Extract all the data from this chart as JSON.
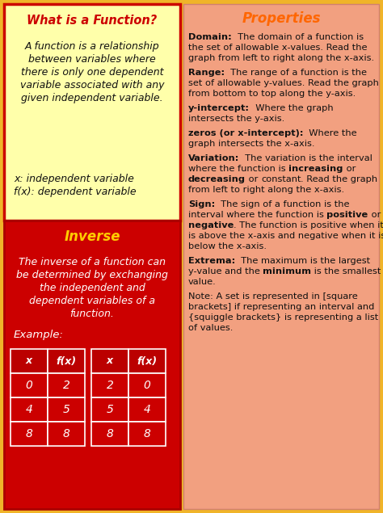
{
  "fig_w": 4.74,
  "fig_h": 6.35,
  "dpi": 100,
  "bg_color": "#f0b429",
  "left_panel_bg": "#ffffaa",
  "left_panel_border": "#cc0000",
  "left_bottom_bg": "#cc0000",
  "right_panel_bg": "#f2a080",
  "orange_title": "#ff6600",
  "dark_red_title": "#cc0000",
  "yellow_title": "#ffcc00",
  "white_text": "#ffffff",
  "black_text": "#111111",
  "what_title": "What is a Function?",
  "what_body_lines": [
    "A function is a relationship",
    "between variables where",
    "there is only one dependent",
    "variable associated with any",
    "given independent variable."
  ],
  "what_footer_lines": [
    "x: independent variable",
    "f(x): dependent variable"
  ],
  "inverse_title": "Inverse",
  "inverse_body_lines": [
    "The inverse of a function can",
    "be determined by exchanging",
    "the independent and",
    "dependent variables of a",
    "function."
  ],
  "inverse_example": "Example:",
  "table_headers": [
    "x",
    "f(x)",
    "x",
    "f(x)"
  ],
  "table_rows": [
    [
      "0",
      "2",
      "2",
      "0"
    ],
    [
      "4",
      "5",
      "5",
      "4"
    ],
    [
      "8",
      "8",
      "8",
      "8"
    ]
  ],
  "props_title": "Properties",
  "prop_entries": [
    {
      "bold": "Domain:",
      "lines": [
        [
          {
            "b": true,
            "t": "Domain:"
          },
          {
            "b": false,
            "t": "  The domain of a function is"
          }
        ],
        [
          {
            "b": false,
            "t": "the set of allowable x-values. Read the"
          }
        ],
        [
          {
            "b": false,
            "t": "graph from left to right along the x-axis."
          }
        ]
      ]
    },
    {
      "bold": "Range:",
      "lines": [
        [
          {
            "b": true,
            "t": "Range:"
          },
          {
            "b": false,
            "t": "  The range of a function is the"
          }
        ],
        [
          {
            "b": false,
            "t": "set of allowable y-values. Read the graph"
          }
        ],
        [
          {
            "b": false,
            "t": "from bottom to top along the y-axis."
          }
        ]
      ]
    },
    {
      "bold": "y-intercept:",
      "lines": [
        [
          {
            "b": true,
            "t": "y-intercept:"
          },
          {
            "b": false,
            "t": "  Where the graph"
          }
        ],
        [
          {
            "b": false,
            "t": "intersects the y-axis."
          }
        ]
      ]
    },
    {
      "bold": "zeros (or x-intercept):",
      "lines": [
        [
          {
            "b": true,
            "t": "zeros (or x-intercept):"
          },
          {
            "b": false,
            "t": "  Where the"
          }
        ],
        [
          {
            "b": false,
            "t": "graph intersects the x-axis."
          }
        ]
      ]
    },
    {
      "bold": "Variation:",
      "lines": [
        [
          {
            "b": true,
            "t": "Variation:"
          },
          {
            "b": false,
            "t": "  The variation is the interval"
          }
        ],
        [
          {
            "b": false,
            "t": "where the function is "
          },
          {
            "b": true,
            "t": "increasing"
          },
          {
            "b": false,
            "t": " or"
          }
        ],
        [
          {
            "b": true,
            "t": "decreasing"
          },
          {
            "b": false,
            "t": " or "
          },
          {
            "b": false,
            "t": "constant"
          },
          {
            "b": false,
            "t": ". Read the graph"
          }
        ],
        [
          {
            "b": false,
            "t": "from left to right along the x-axis."
          }
        ]
      ]
    },
    {
      "bold": "Sign:",
      "lines": [
        [
          {
            "b": true,
            "t": "Sign:"
          },
          {
            "b": false,
            "t": "  The sign of a function is the"
          }
        ],
        [
          {
            "b": false,
            "t": "interval where the function is "
          },
          {
            "b": true,
            "t": "positive"
          },
          {
            "b": false,
            "t": " or"
          }
        ],
        [
          {
            "b": true,
            "t": "negative"
          },
          {
            "b": false,
            "t": ". The function is positive when it"
          }
        ],
        [
          {
            "b": false,
            "t": "is above the x-axis and negative when it is"
          }
        ],
        [
          {
            "b": false,
            "t": "below the x-axis."
          }
        ]
      ]
    },
    {
      "bold": "Extrema:",
      "lines": [
        [
          {
            "b": true,
            "t": "Extrema:"
          },
          {
            "b": false,
            "t": "  The maximum is the largest"
          }
        ],
        [
          {
            "b": false,
            "t": "y-value and the "
          },
          {
            "b": true,
            "t": "minimum"
          },
          {
            "b": false,
            "t": " is the smallest y-"
          }
        ],
        [
          {
            "b": false,
            "t": "value."
          }
        ]
      ]
    },
    {
      "bold": "Note:",
      "lines": [
        [
          {
            "b": false,
            "t": "Note: A set is represented in [square"
          }
        ],
        [
          {
            "b": false,
            "t": "brackets] if representing an interval and"
          }
        ],
        [
          {
            "b": false,
            "t": "{squiggle brackets} is representing a list"
          }
        ],
        [
          {
            "b": false,
            "t": "of values."
          }
        ]
      ]
    }
  ]
}
